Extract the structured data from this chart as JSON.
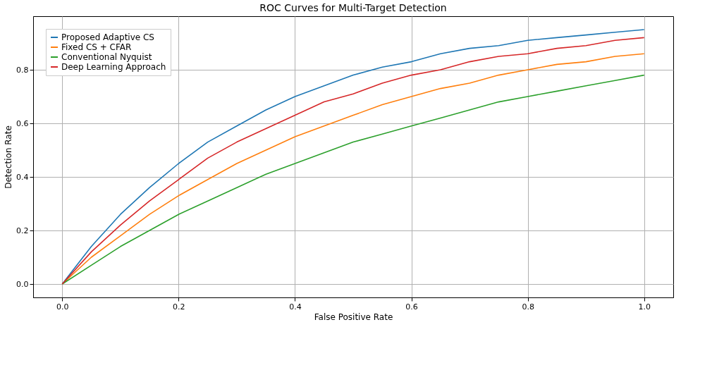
{
  "chart_data": {
    "type": "line",
    "title": "ROC Curves for Multi-Target Detection",
    "xlabel": "False Positive Rate",
    "ylabel": "Detection Rate",
    "x": [
      0,
      0.05,
      0.1,
      0.15,
      0.2,
      0.25,
      0.3,
      0.35,
      0.4,
      0.45,
      0.5,
      0.55,
      0.6,
      0.65,
      0.7,
      0.75,
      0.8,
      0.85,
      0.9,
      0.95,
      1.0
    ],
    "series": [
      {
        "name": "Proposed Adaptive CS",
        "color": "#1f77b4",
        "values": [
          0,
          0.14,
          0.26,
          0.36,
          0.45,
          0.53,
          0.59,
          0.65,
          0.7,
          0.74,
          0.78,
          0.81,
          0.83,
          0.86,
          0.88,
          0.89,
          0.91,
          0.92,
          0.93,
          0.94,
          0.95
        ]
      },
      {
        "name": "Fixed CS + CFAR",
        "color": "#ff7f0e",
        "values": [
          0,
          0.1,
          0.18,
          0.26,
          0.33,
          0.39,
          0.45,
          0.5,
          0.55,
          0.59,
          0.63,
          0.67,
          0.7,
          0.73,
          0.75,
          0.78,
          0.8,
          0.82,
          0.83,
          0.85,
          0.86
        ]
      },
      {
        "name": "Conventional Nyquist",
        "color": "#2ca02c",
        "values": [
          0,
          0.07,
          0.14,
          0.2,
          0.26,
          0.31,
          0.36,
          0.41,
          0.45,
          0.49,
          0.53,
          0.56,
          0.59,
          0.62,
          0.65,
          0.68,
          0.7,
          0.72,
          0.74,
          0.76,
          0.78
        ]
      },
      {
        "name": "Deep Learning Approach",
        "color": "#d62728",
        "values": [
          0,
          0.12,
          0.22,
          0.31,
          0.39,
          0.47,
          0.53,
          0.58,
          0.63,
          0.68,
          0.71,
          0.75,
          0.78,
          0.8,
          0.83,
          0.85,
          0.86,
          0.88,
          0.89,
          0.91,
          0.92
        ]
      }
    ],
    "xlim": [
      -0.05,
      1.05
    ],
    "ylim": [
      -0.05,
      1.0
    ],
    "xticks": [
      {
        "value": 0,
        "label": "0.0"
      },
      {
        "value": 0.2,
        "label": "0.2"
      },
      {
        "value": 0.4,
        "label": "0.4"
      },
      {
        "value": 0.6,
        "label": "0.6"
      },
      {
        "value": 0.8,
        "label": "0.8"
      },
      {
        "value": 1.0,
        "label": "1.0"
      }
    ],
    "yticks": [
      {
        "value": 0,
        "label": "0.0"
      },
      {
        "value": 0.2,
        "label": "0.2"
      },
      {
        "value": 0.4,
        "label": "0.4"
      },
      {
        "value": 0.6,
        "label": "0.6"
      },
      {
        "value": 0.8,
        "label": "0.8"
      }
    ],
    "grid": true,
    "legend": "top left",
    "marker": "none",
    "line_style": "solid"
  }
}
